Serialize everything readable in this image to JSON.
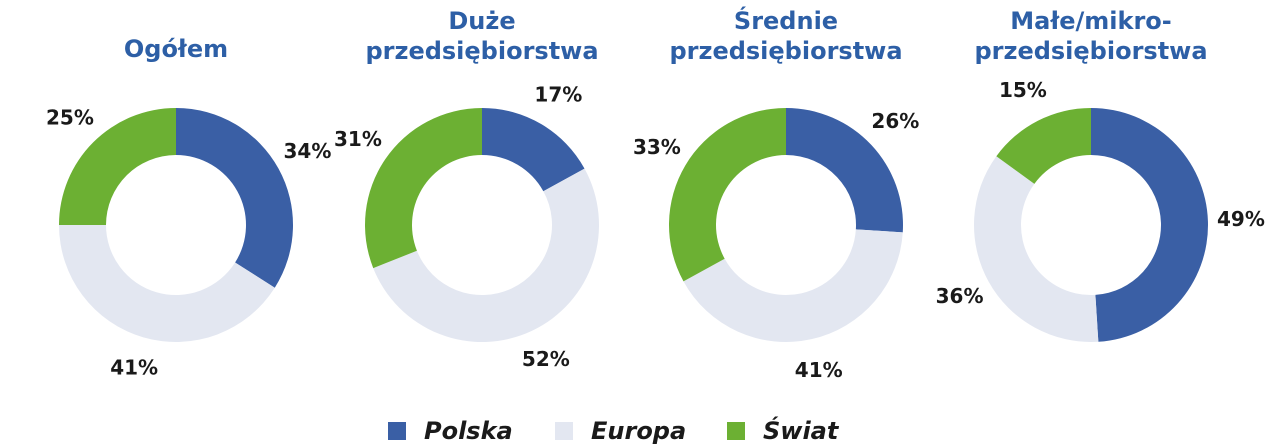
{
  "chart_data": [
    {
      "type": "donut",
      "title": "Ogółem",
      "categories": [
        "Polska",
        "Europa",
        "Świat"
      ],
      "colors": [
        "#3a5fa5",
        "#e3e7f1",
        "#6cb033"
      ],
      "values": [
        34,
        41,
        25
      ],
      "value_labels": [
        "34%",
        "41%",
        "25%"
      ]
    },
    {
      "type": "donut",
      "title": "Duże przedsiębiorstwa",
      "categories": [
        "Polska",
        "Europa",
        "Świat"
      ],
      "colors": [
        "#3a5fa5",
        "#e3e7f1",
        "#6cb033"
      ],
      "values": [
        17,
        52,
        31
      ],
      "value_labels": [
        "17%",
        "52%",
        "31%"
      ]
    },
    {
      "type": "donut",
      "title": "Średnie przedsiębiorstwa",
      "categories": [
        "Polska",
        "Europa",
        "Świat"
      ],
      "colors": [
        "#3a5fa5",
        "#e3e7f1",
        "#6cb033"
      ],
      "values": [
        26,
        41,
        33
      ],
      "value_labels": [
        "26%",
        "41%",
        "33%"
      ]
    },
    {
      "type": "donut",
      "title": "Małe/mikro-przedsiębiorstwa",
      "categories": [
        "Polska",
        "Europa",
        "Świat"
      ],
      "colors": [
        "#3a5fa5",
        "#e3e7f1",
        "#6cb033"
      ],
      "values": [
        49,
        36,
        15
      ],
      "value_labels": [
        "49%",
        "36%",
        "15%"
      ]
    }
  ]
}
